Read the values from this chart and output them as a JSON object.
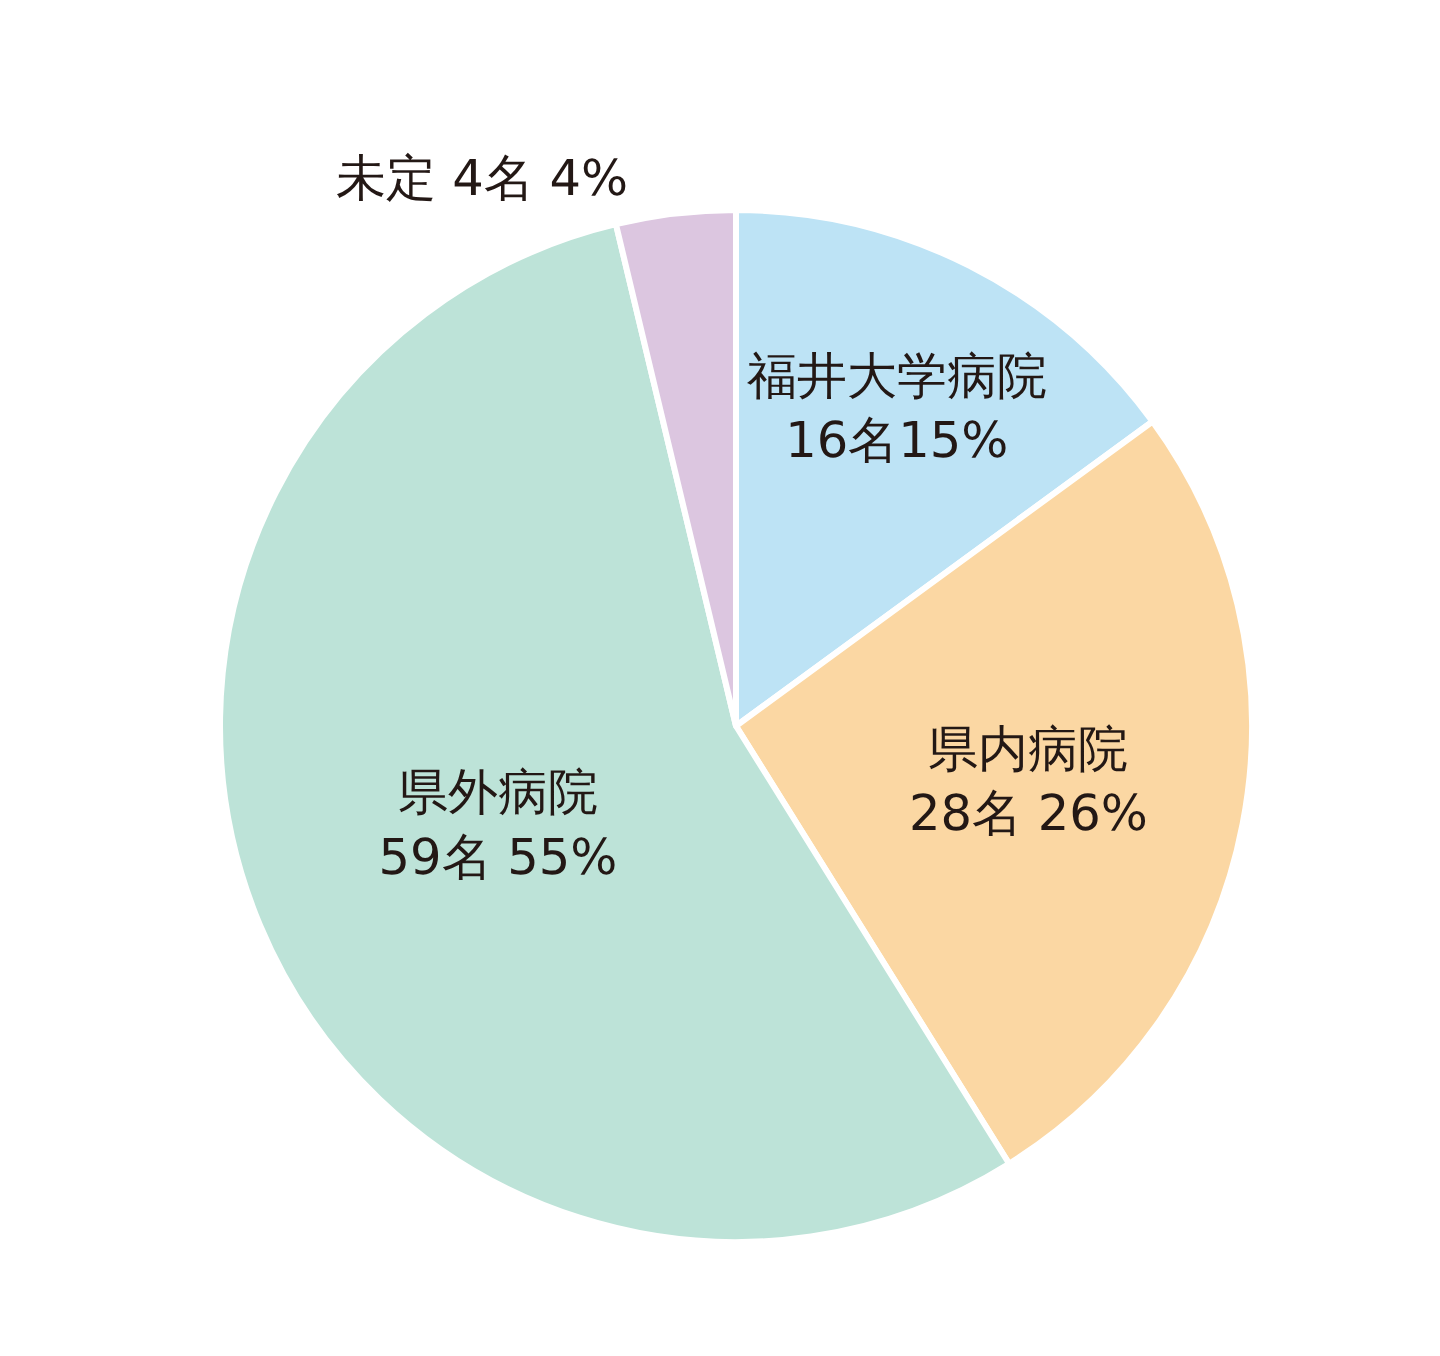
{
  "chart_data": {
    "type": "pie",
    "categories": [
      "福井大学病院",
      "県内病院",
      "県外病院",
      "未定"
    ],
    "values": [
      16,
      28,
      59,
      4
    ],
    "value_labels": [
      "16名15%",
      "28名 26%",
      "59名 55%",
      "4名 4%"
    ],
    "colors": [
      "#bde3f5",
      "#fbd7a3",
      "#bde3d8",
      "#dcc6e0"
    ],
    "legend": false
  }
}
